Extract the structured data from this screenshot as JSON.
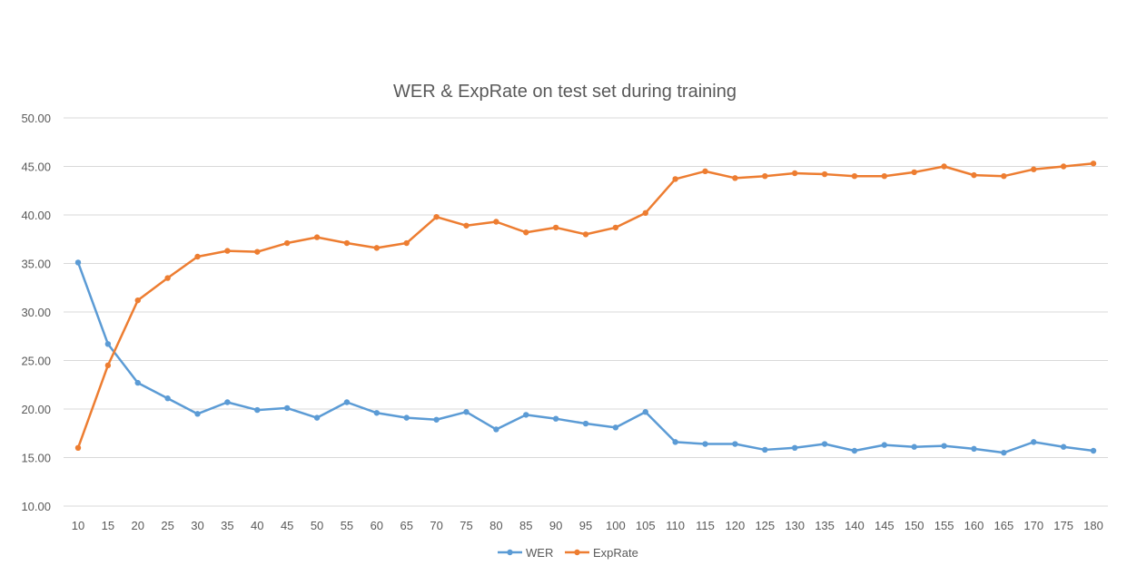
{
  "chart_data": {
    "type": "line",
    "title": "WER & ExpRate on test set during training",
    "xlabel": "",
    "ylabel": "",
    "ylim": [
      10,
      50
    ],
    "yticks": [
      "10.00",
      "15.00",
      "20.00",
      "25.00",
      "30.00",
      "35.00",
      "40.00",
      "45.00",
      "50.00"
    ],
    "grid": true,
    "legend_position": "bottom",
    "x": [
      10,
      15,
      20,
      25,
      30,
      35,
      40,
      45,
      50,
      55,
      60,
      65,
      70,
      75,
      80,
      85,
      90,
      95,
      100,
      105,
      110,
      115,
      120,
      125,
      130,
      135,
      140,
      145,
      150,
      155,
      160,
      165,
      170,
      175,
      180
    ],
    "series": [
      {
        "name": "WER",
        "color": "#5b9bd5",
        "values": [
          35.1,
          26.7,
          22.7,
          21.1,
          19.5,
          20.7,
          19.9,
          20.1,
          19.1,
          20.7,
          19.6,
          19.1,
          18.9,
          19.7,
          17.9,
          19.4,
          19.0,
          18.5,
          18.1,
          19.7,
          16.6,
          16.4,
          16.4,
          15.8,
          16.0,
          16.4,
          15.7,
          16.3,
          16.1,
          16.2,
          15.9,
          15.5,
          16.6,
          16.1,
          15.7
        ]
      },
      {
        "name": "ExpRate",
        "color": "#ed7d31",
        "values": [
          16.0,
          24.5,
          31.2,
          33.5,
          35.7,
          36.3,
          36.2,
          37.1,
          37.7,
          37.1,
          36.6,
          37.1,
          39.8,
          38.9,
          39.3,
          38.2,
          38.7,
          38.0,
          38.7,
          40.2,
          43.7,
          44.5,
          43.8,
          44.0,
          44.3,
          44.2,
          44.0,
          44.0,
          44.4,
          45.0,
          44.1,
          44.0,
          44.7,
          45.0,
          45.3
        ]
      }
    ]
  }
}
